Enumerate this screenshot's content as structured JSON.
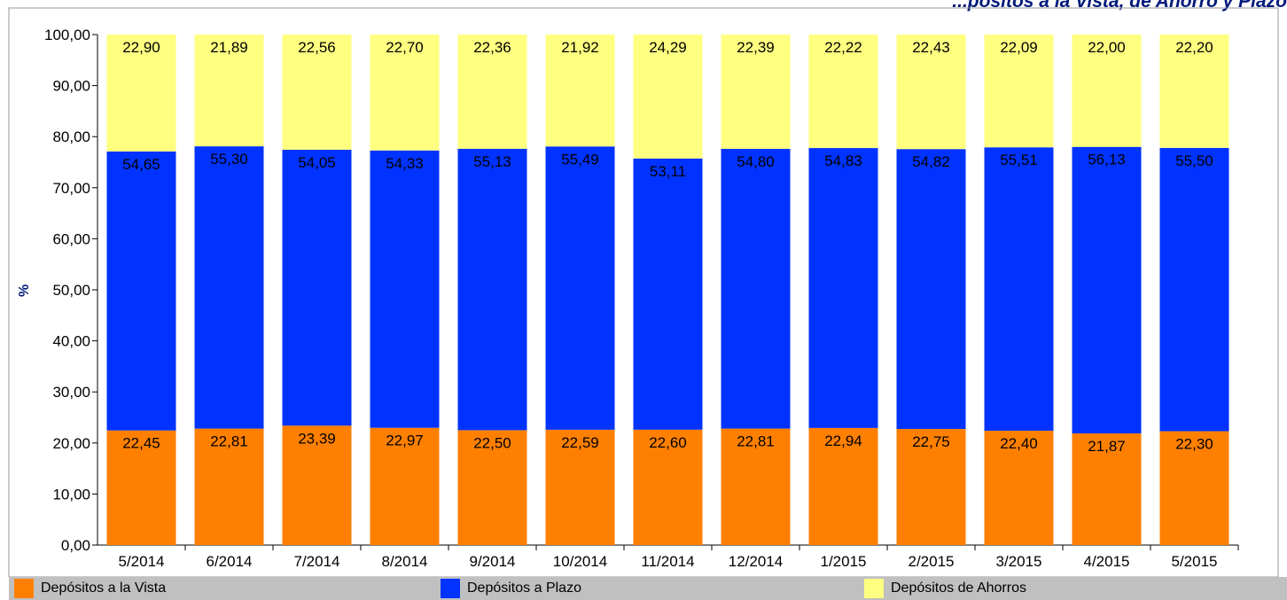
{
  "chart_data": {
    "type": "bar",
    "stacked": true,
    "title": "...pósitos a la Vista, de Ahorro y Plazo",
    "ylabel": "%",
    "xlabel": "",
    "ylim": [
      0,
      100
    ],
    "yticks": [
      "0,00",
      "10,00",
      "20,00",
      "30,00",
      "40,00",
      "50,00",
      "60,00",
      "70,00",
      "80,00",
      "90,00",
      "100,00"
    ],
    "categories": [
      "5/2014",
      "6/2014",
      "7/2014",
      "8/2014",
      "9/2014",
      "10/2014",
      "11/2014",
      "12/2014",
      "1/2015",
      "2/2015",
      "3/2015",
      "4/2015",
      "5/2015"
    ],
    "series": [
      {
        "name": "Depósitos a la Vista",
        "color": "#ff8000",
        "values": [
          22.45,
          22.81,
          23.39,
          22.97,
          22.5,
          22.59,
          22.6,
          22.81,
          22.94,
          22.75,
          22.4,
          21.87,
          22.3
        ],
        "labels": [
          "22,45",
          "22,81",
          "23,39",
          "22,97",
          "22,50",
          "22,59",
          "22,60",
          "22,81",
          "22,94",
          "22,75",
          "22,40",
          "21,87",
          "22,30"
        ]
      },
      {
        "name": "Depósitos a Plazo",
        "color": "#0033ff",
        "values": [
          54.65,
          55.3,
          54.05,
          54.33,
          55.13,
          55.49,
          53.11,
          54.8,
          54.83,
          54.82,
          55.51,
          56.13,
          55.5
        ],
        "labels": [
          "54,65",
          "55,30",
          "54,05",
          "54,33",
          "55,13",
          "55,49",
          "53,11",
          "54,80",
          "54,83",
          "54,82",
          "55,51",
          "56,13",
          "55,50"
        ]
      },
      {
        "name": "Depósitos de Ahorros",
        "color": "#ffff80",
        "values": [
          22.9,
          21.89,
          22.56,
          22.7,
          22.36,
          21.92,
          24.29,
          22.39,
          22.22,
          22.43,
          22.09,
          22.0,
          22.2
        ],
        "labels": [
          "22,90",
          "21,89",
          "22,56",
          "22,70",
          "22,36",
          "21,92",
          "24,29",
          "22,39",
          "22,22",
          "22,43",
          "22,09",
          "22,00",
          "22,20"
        ]
      }
    ],
    "grid": false,
    "legend_position": "bottom"
  }
}
